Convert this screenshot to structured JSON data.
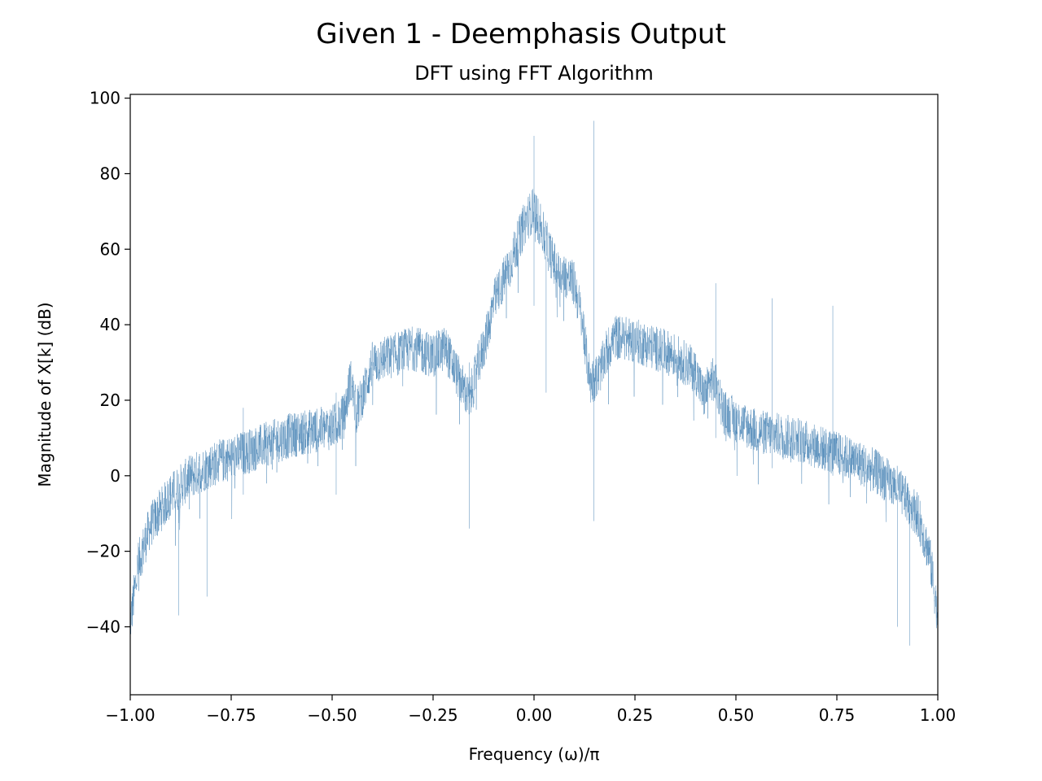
{
  "chart_data": {
    "type": "line",
    "title": "Given 1 - Deemphasis Output",
    "subtitle": "DFT using FFT Algorithm",
    "xlabel": "Frequency (ω)/π",
    "ylabel": "Magnitude of X[k] (dB)",
    "xlim": [
      -1.0,
      1.0
    ],
    "ylim": [
      -58,
      101
    ],
    "x_ticks": [
      -1.0,
      -0.75,
      -0.5,
      -0.25,
      0.0,
      0.25,
      0.5,
      0.75,
      1.0
    ],
    "x_tick_labels": [
      "−1.00",
      "−0.75",
      "−0.50",
      "−0.25",
      "0.00",
      "0.25",
      "0.50",
      "0.75",
      "1.00"
    ],
    "y_ticks": [
      -40,
      -20,
      0,
      20,
      40,
      60,
      80,
      100
    ],
    "y_tick_labels": [
      "−40",
      "−20",
      "0",
      "20",
      "40",
      "60",
      "80",
      "100"
    ],
    "grid": false,
    "line_color": "#4682b4",
    "series": [
      {
        "x": [
          -1.0,
          -0.98,
          -0.95,
          -0.9,
          -0.85,
          -0.8,
          -0.75,
          -0.7,
          -0.65,
          -0.6,
          -0.55,
          -0.5,
          -0.47,
          -0.455,
          -0.44,
          -0.42,
          -0.4,
          -0.35,
          -0.3,
          -0.25,
          -0.22,
          -0.19,
          -0.16,
          -0.14,
          -0.12,
          -0.1,
          -0.08,
          -0.06,
          -0.04,
          -0.02,
          0.0,
          0.02,
          0.04,
          0.06,
          0.08,
          0.1,
          0.12,
          0.13,
          0.14,
          0.16,
          0.18,
          0.2,
          0.25,
          0.3,
          0.35,
          0.4,
          0.42,
          0.44,
          0.455,
          0.47,
          0.5,
          0.55,
          0.6,
          0.65,
          0.7,
          0.75,
          0.8,
          0.85,
          0.9,
          0.95,
          0.98,
          1.0
        ],
        "y": [
          -38,
          -22,
          -12,
          -4,
          1,
          4,
          6,
          8,
          10,
          12,
          13,
          14,
          17,
          27,
          18,
          24,
          31,
          33,
          35,
          33,
          35,
          28,
          21,
          30,
          37,
          47,
          52,
          57,
          63,
          69,
          72,
          66,
          60,
          55,
          54,
          52,
          42,
          33,
          26,
          28,
          34,
          38,
          37,
          35,
          33,
          29,
          22,
          27,
          24,
          18,
          16,
          13,
          12,
          11,
          9,
          7,
          5,
          2,
          -2,
          -9,
          -20,
          -36
        ]
      }
    ],
    "spikes": [
      {
        "x": 0.148,
        "y_low": -12,
        "y_high": 94
      },
      {
        "x": -0.49,
        "y_low": -5,
        "y_high": 22
      },
      {
        "x": -0.16,
        "y_low": -14,
        "y_high": 30
      },
      {
        "x": 0.45,
        "y_low": 10,
        "y_high": 51
      },
      {
        "x": 0.59,
        "y_low": 2,
        "y_high": 47
      },
      {
        "x": 0.74,
        "y_low": 0,
        "y_high": 45
      },
      {
        "x": -0.72,
        "y_low": -5,
        "y_high": 18
      },
      {
        "x": 0.03,
        "y_low": 22,
        "y_high": 58
      },
      {
        "x": 0.0,
        "y_low": 45,
        "y_high": 90
      },
      {
        "x": -0.88,
        "y_low": -37,
        "y_high": -8
      },
      {
        "x": -0.81,
        "y_low": -32,
        "y_high": -2
      },
      {
        "x": 0.93,
        "y_low": -45,
        "y_high": -10
      },
      {
        "x": 0.9,
        "y_low": -40,
        "y_high": -5
      }
    ]
  }
}
